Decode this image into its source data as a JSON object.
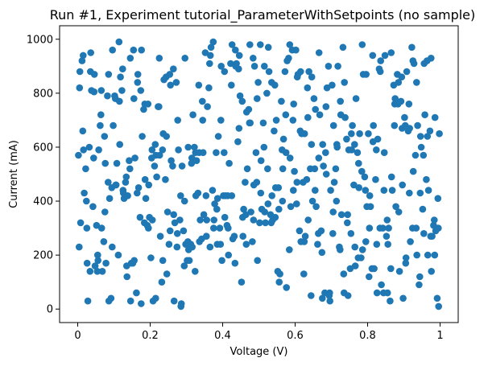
{
  "chart_data": {
    "type": "scatter",
    "title": "Run #1, Experiment tutorial_ParameterWithSetpoints (no sample)",
    "xlabel": "Voltage (V)",
    "ylabel": "Current (mA)",
    "xlim": [
      -0.05,
      1.05
    ],
    "ylim": [
      -50,
      1050
    ],
    "x_ticks": [
      0,
      0.2,
      0.4,
      0.6,
      0.8,
      1
    ],
    "x_tick_labels": [
      "0",
      "0.2",
      "0.4",
      "0.6",
      "0.8",
      "1"
    ],
    "y_ticks": [
      0,
      200,
      400,
      600,
      800,
      1000
    ],
    "y_tick_labels": [
      "0",
      "200",
      "400",
      "600",
      "800",
      "1000"
    ],
    "grid": false,
    "marker_color": "#1f77b4",
    "series": [
      {
        "x": [
          0.005,
          0.015,
          0.025,
          0.035,
          0.045,
          0.055,
          0.065,
          0.075,
          0.085,
          0.095,
          0.105,
          0.115,
          0.125,
          0.135,
          0.145,
          0.155,
          0.165,
          0.175,
          0.185,
          0.195,
          0.205,
          0.215,
          0.225,
          0.235,
          0.245,
          0.255,
          0.265,
          0.275,
          0.285,
          0.295,
          0.305,
          0.315,
          0.325,
          0.335,
          0.345,
          0.355,
          0.365,
          0.375,
          0.385,
          0.395,
          0.405,
          0.415,
          0.425,
          0.435,
          0.445,
          0.455,
          0.465,
          0.475,
          0.485,
          0.495,
          0.505,
          0.515,
          0.525,
          0.535,
          0.545,
          0.555,
          0.565,
          0.575,
          0.585,
          0.595,
          0.605,
          0.615,
          0.625,
          0.635,
          0.645,
          0.655,
          0.665,
          0.675,
          0.685,
          0.695,
          0.705,
          0.715,
          0.725,
          0.735,
          0.745,
          0.755,
          0.765,
          0.775,
          0.785,
          0.795,
          0.805,
          0.815,
          0.825,
          0.835,
          0.845,
          0.855,
          0.865,
          0.875,
          0.885,
          0.895,
          0.905,
          0.915,
          0.925,
          0.935,
          0.945,
          0.955,
          0.965,
          0.975,
          0.985,
          0.995,
          0.002,
          0.012,
          0.022,
          0.032,
          0.042,
          0.052,
          0.062,
          0.072,
          0.082,
          0.092,
          0.102,
          0.112,
          0.122,
          0.132,
          0.142,
          0.152,
          0.162,
          0.172,
          0.182,
          0.192,
          0.202,
          0.212,
          0.222,
          0.232,
          0.242,
          0.252,
          0.262,
          0.272,
          0.282,
          0.292,
          0.302,
          0.312,
          0.322,
          0.332,
          0.342,
          0.352,
          0.362,
          0.372,
          0.382,
          0.392,
          0.402,
          0.412,
          0.422,
          0.432,
          0.442,
          0.452,
          0.462,
          0.472,
          0.482,
          0.492,
          0.502,
          0.512,
          0.522,
          0.532,
          0.542,
          0.552,
          0.562,
          0.572,
          0.582,
          0.592,
          0.602,
          0.612,
          0.622,
          0.632,
          0.642,
          0.652,
          0.662,
          0.672,
          0.682,
          0.692,
          0.702,
          0.712,
          0.722,
          0.732,
          0.742,
          0.752,
          0.762,
          0.772,
          0.782,
          0.792,
          0.802,
          0.812,
          0.822,
          0.832,
          0.842,
          0.852,
          0.862,
          0.872,
          0.882,
          0.892,
          0.902,
          0.912,
          0.922,
          0.932,
          0.942,
          0.952,
          0.962,
          0.972,
          0.982,
          0.992,
          0.008,
          0.018,
          0.028,
          0.038,
          0.048,
          0.058,
          0.068,
          0.078,
          0.088,
          0.098,
          0.108,
          0.118,
          0.128,
          0.138,
          0.148,
          0.158,
          0.168,
          0.178,
          0.188,
          0.198,
          0.208,
          0.218,
          0.228,
          0.238,
          0.248,
          0.258,
          0.268,
          0.278,
          0.288,
          0.298,
          0.308,
          0.318,
          0.328,
          0.338,
          0.348,
          0.358,
          0.368,
          0.378,
          0.388,
          0.398,
          0.408,
          0.418,
          0.428,
          0.438,
          0.448,
          0.458,
          0.468,
          0.478,
          0.488,
          0.498,
          0.508,
          0.518,
          0.528,
          0.538,
          0.548,
          0.558,
          0.568,
          0.578,
          0.588,
          0.598,
          0.608,
          0.618,
          0.628,
          0.638,
          0.648,
          0.658,
          0.668,
          0.678,
          0.688,
          0.698,
          0.708,
          0.718,
          0.728,
          0.738,
          0.748,
          0.758,
          0.768,
          0.778,
          0.788,
          0.798,
          0.808,
          0.818,
          0.828,
          0.838,
          0.848,
          0.858,
          0.868,
          0.878,
          0.888,
          0.898,
          0.908,
          0.918,
          0.928,
          0.938,
          0.948,
          0.958,
          0.968,
          0.978,
          0.988,
          0.998,
          0.004,
          0.014,
          0.024,
          0.034,
          0.044,
          0.054,
          0.064,
          0.074,
          0.084,
          0.094,
          0.104,
          0.114,
          0.124,
          0.134,
          0.144,
          0.154,
          0.164,
          0.174,
          0.184,
          0.194,
          0.204,
          0.214,
          0.224,
          0.234,
          0.244,
          0.254,
          0.264,
          0.274,
          0.284,
          0.294,
          0.304,
          0.314,
          0.324,
          0.334,
          0.344,
          0.354,
          0.364,
          0.374,
          0.384,
          0.394,
          0.404,
          0.414,
          0.424,
          0.434,
          0.444,
          0.454,
          0.464,
          0.474,
          0.484,
          0.494,
          0.504,
          0.514,
          0.524,
          0.534,
          0.544,
          0.554,
          0.564,
          0.574,
          0.584,
          0.594,
          0.604,
          0.614,
          0.624,
          0.634,
          0.644,
          0.654,
          0.664,
          0.674,
          0.684,
          0.694,
          0.704,
          0.714,
          0.724,
          0.734,
          0.744,
          0.754,
          0.764,
          0.774,
          0.784,
          0.794,
          0.804,
          0.814,
          0.824,
          0.834,
          0.844,
          0.854,
          0.864,
          0.874,
          0.884,
          0.894,
          0.904,
          0.914,
          0.924,
          0.934,
          0.944,
          0.954,
          0.964,
          0.974,
          0.984,
          0.994,
          0.006,
          0.016,
          0.026,
          0.036,
          0.046,
          0.056,
          0.066,
          0.076,
          0.086,
          0.096,
          0.106,
          0.116,
          0.126,
          0.136,
          0.146,
          0.156,
          0.166,
          0.176,
          0.186,
          0.196,
          0.206,
          0.216,
          0.226,
          0.236,
          0.246,
          0.256,
          0.266,
          0.276,
          0.286,
          0.296,
          0.306,
          0.316,
          0.326,
          0.336,
          0.346,
          0.356,
          0.366,
          0.376,
          0.386,
          0.396,
          0.406,
          0.416,
          0.426,
          0.436,
          0.446,
          0.456,
          0.466,
          0.476,
          0.486,
          0.496,
          0.506,
          0.516,
          0.526,
          0.536,
          0.546,
          0.556,
          0.566,
          0.576,
          0.586,
          0.596,
          0.606,
          0.616,
          0.626,
          0.636,
          0.646,
          0.656,
          0.666,
          0.676,
          0.686,
          0.696,
          0.706,
          0.716,
          0.726,
          0.736,
          0.746,
          0.756,
          0.766,
          0.776,
          0.786,
          0.796,
          0.806,
          0.816,
          0.826,
          0.836,
          0.846,
          0.856,
          0.866,
          0.876,
          0.886,
          0.896,
          0.906,
          0.916,
          0.926,
          0.936,
          0.946,
          0.956,
          0.966,
          0.976,
          0.986,
          0.996
        ],
        "y": [
          820,
          940,
          300,
          880,
          805,
          200,
          810,
          360,
          870,
          230,
          460,
          770,
          440,
          160,
          930,
          780,
          840,
          20,
          760,
          300,
          590,
          40,
          930,
          180,
          640,
          290,
          350,
          280,
          10,
          400,
          600,
          560,
          580,
          580,
          700,
          270,
          230,
          300,
          240,
          700,
          880,
          300,
          420,
          960,
          670,
          340,
          240,
          980,
          330,
          780,
          430,
          900,
          390,
          840,
          340,
          370,
          400,
          580,
          980,
          440,
          470,
          880,
          250,
          710,
          610,
          440,
          560,
          40,
          750,
          60,
          360,
          610,
          770,
          60,
          350,
          650,
          230,
          540,
          980,
          250,
          300,
          620,
          240,
          880,
          440,
          60,
          950,
          760,
          840,
          670,
          170,
          430,
          920,
          840,
          430,
          280,
          640,
          930,
          200,
          300,
          570,
          920,
          520,
          600,
          380,
          310,
          680,
          250,
          790,
          40,
          790,
          200,
          810,
          470,
          550,
          170,
          60,
          340,
          740,
          310,
          190,
          530,
          750,
          100,
          480,
          240,
          530,
          840,
          330,
          290,
          180,
          240,
          600,
          430,
          260,
          950,
          820,
          440,
          580,
          300,
          420,
          310,
          910,
          270,
          620,
          100,
          470,
          740,
          250,
          580,
          320,
          690,
          800,
          350,
          660,
          140,
          770,
          880,
          930,
          960,
          960,
          290,
          470,
          480,
          520,
          780,
          240,
          290,
          60,
          900,
          830,
          520,
          230,
          970,
          630,
          150,
          460,
          580,
          190,
          490,
          650,
          150,
          480,
          890,
          300,
          270,
          30,
          830,
          870,
          770,
          710,
          660,
          970,
          570,
          90,
          370,
          480,
          660,
          310,
          40,
          320,
          430,
          30,
          810,
          160,
          590,
          140,
          170,
          410,
          680,
          540,
          860,
          410,
          420,
          170,
          560,
          450,
          640,
          410,
          340,
          30,
          490,
          270,
          850,
          360,
          550,
          320,
          590,
          530,
          240,
          180,
          720,
          550,
          330,
          350,
          750,
          970,
          390,
          640,
          180,
          420,
          540,
          260,
          910,
          790,
          370,
          520,
          360,
          900,
          840,
          370,
          320,
          880,
          330,
          700,
          130,
          630,
          920,
          380,
          510,
          870,
          650,
          270,
          880,
          400,
          380,
          720,
          530,
          820,
          440,
          470,
          900,
          350,
          710,
          590,
          680,
          780,
          650,
          870,
          380,
          380,
          150,
          630,
          90,
          940,
          300,
          440,
          380,
          140,
          40,
          880,
          250,
          910,
          680,
          600,
          720,
          440,
          270,
          290,
          650,
          230,
          660,
          400,
          140,
          560,
          140,
          720,
          640,
          470,
          450,
          780,
          990,
          890,
          490,
          520,
          960,
          430,
          810,
          320,
          760,
          560,
          610,
          750,
          590,
          860,
          870,
          890,
          230,
          420,
          160,
          250,
          540,
          140,
          830,
          770,
          420,
          910,
          990,
          370,
          240,
          580,
          420,
          830,
          170,
          890,
          770,
          350,
          690,
          930,
          470,
          980,
          600,
          520,
          320,
          830,
          450,
          590,
          720,
          220,
          700,
          390,
          660,
          130,
          820,
          50,
          520,
          280,
          210,
          580,
          50,
          280,
          400,
          220,
          130,
          320,
          280,
          610,
          190,
          510,
          440,
          120,
          940,
          590,
          300,
          60,
          330,
          150,
          680,
          760,
          860,
          680,
          760,
          300,
          300,
          120,
          570,
          920,
          270,
          330,
          410,
          880,
          590,
          170,
          950,
          870,
          180,
          300,
          540,
          30,
          960,
          460,
          610,
          430,
          120,
          30,
          180,
          870,
          960,
          480,
          460,
          330,
          570,
          570,
          650,
          130,
          830,
          30,
          700,
          20,
          930,
          220,
          230,
          420,
          250,
          580,
          330,
          940,
          330,
          410,
          900,
          340,
          200,
          980,
          900,
          940,
          270,
          730,
          690,
          460,
          180,
          550,
          360,
          970,
          420,
          450,
          100,
          520,
          80,
          560,
          760,
          860,
          250,
          650,
          330,
          860,
          740,
          950,
          610,
          500,
          30,
          680,
          600,
          720,
          840,
          50,
          590,
          160,
          450,
          220,
          870,
          420,
          680,
          60,
          920,
          580,
          240,
          490,
          780,
          360,
          460,
          190,
          670,
          510,
          200,
          640,
          910,
          200,
          140,
          710,
          10
        ]
      }
    ]
  }
}
